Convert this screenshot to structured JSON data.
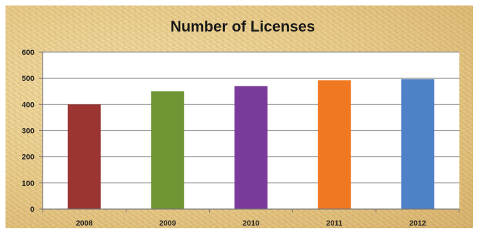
{
  "chart_data": {
    "type": "bar",
    "title": "Number of Licenses",
    "xlabel": "",
    "ylabel": "",
    "categories": [
      "2008",
      "2009",
      "2010",
      "2011",
      "2012"
    ],
    "values": [
      400,
      450,
      470,
      492,
      497
    ],
    "ylim": [
      0,
      600
    ],
    "yticks": [
      "0",
      "100",
      "200",
      "300",
      "400",
      "500",
      "600"
    ],
    "grid": true,
    "legend": "none",
    "colors": [
      "#9a3532",
      "#6f9534",
      "#7a3a9a",
      "#f07823",
      "#4f81c7"
    ],
    "plot_background": "#ffffff",
    "gridline_color": "#999999"
  }
}
